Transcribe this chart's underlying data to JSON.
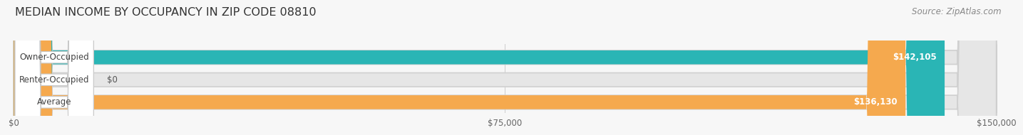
{
  "title": "MEDIAN INCOME BY OCCUPANCY IN ZIP CODE 08810",
  "source": "Source: ZipAtlas.com",
  "categories": [
    "Owner-Occupied",
    "Renter-Occupied",
    "Average"
  ],
  "values": [
    142105,
    0,
    136130
  ],
  "bar_colors": [
    "#2ab5b5",
    "#c9aed6",
    "#f5a94e"
  ],
  "bar_labels": [
    "$142,105",
    "$0",
    "$136,130"
  ],
  "xlim": [
    0,
    150000
  ],
  "xticks": [
    0,
    75000,
    150000
  ],
  "xtick_labels": [
    "$0",
    "$75,000",
    "$150,000"
  ],
  "background_color": "#f7f7f7",
  "bar_bg_color": "#e6e6e6",
  "title_fontsize": 11.5,
  "source_fontsize": 8.5,
  "label_fontsize": 8.5,
  "tick_fontsize": 8.5,
  "pill_label_fontsize": 8.5
}
